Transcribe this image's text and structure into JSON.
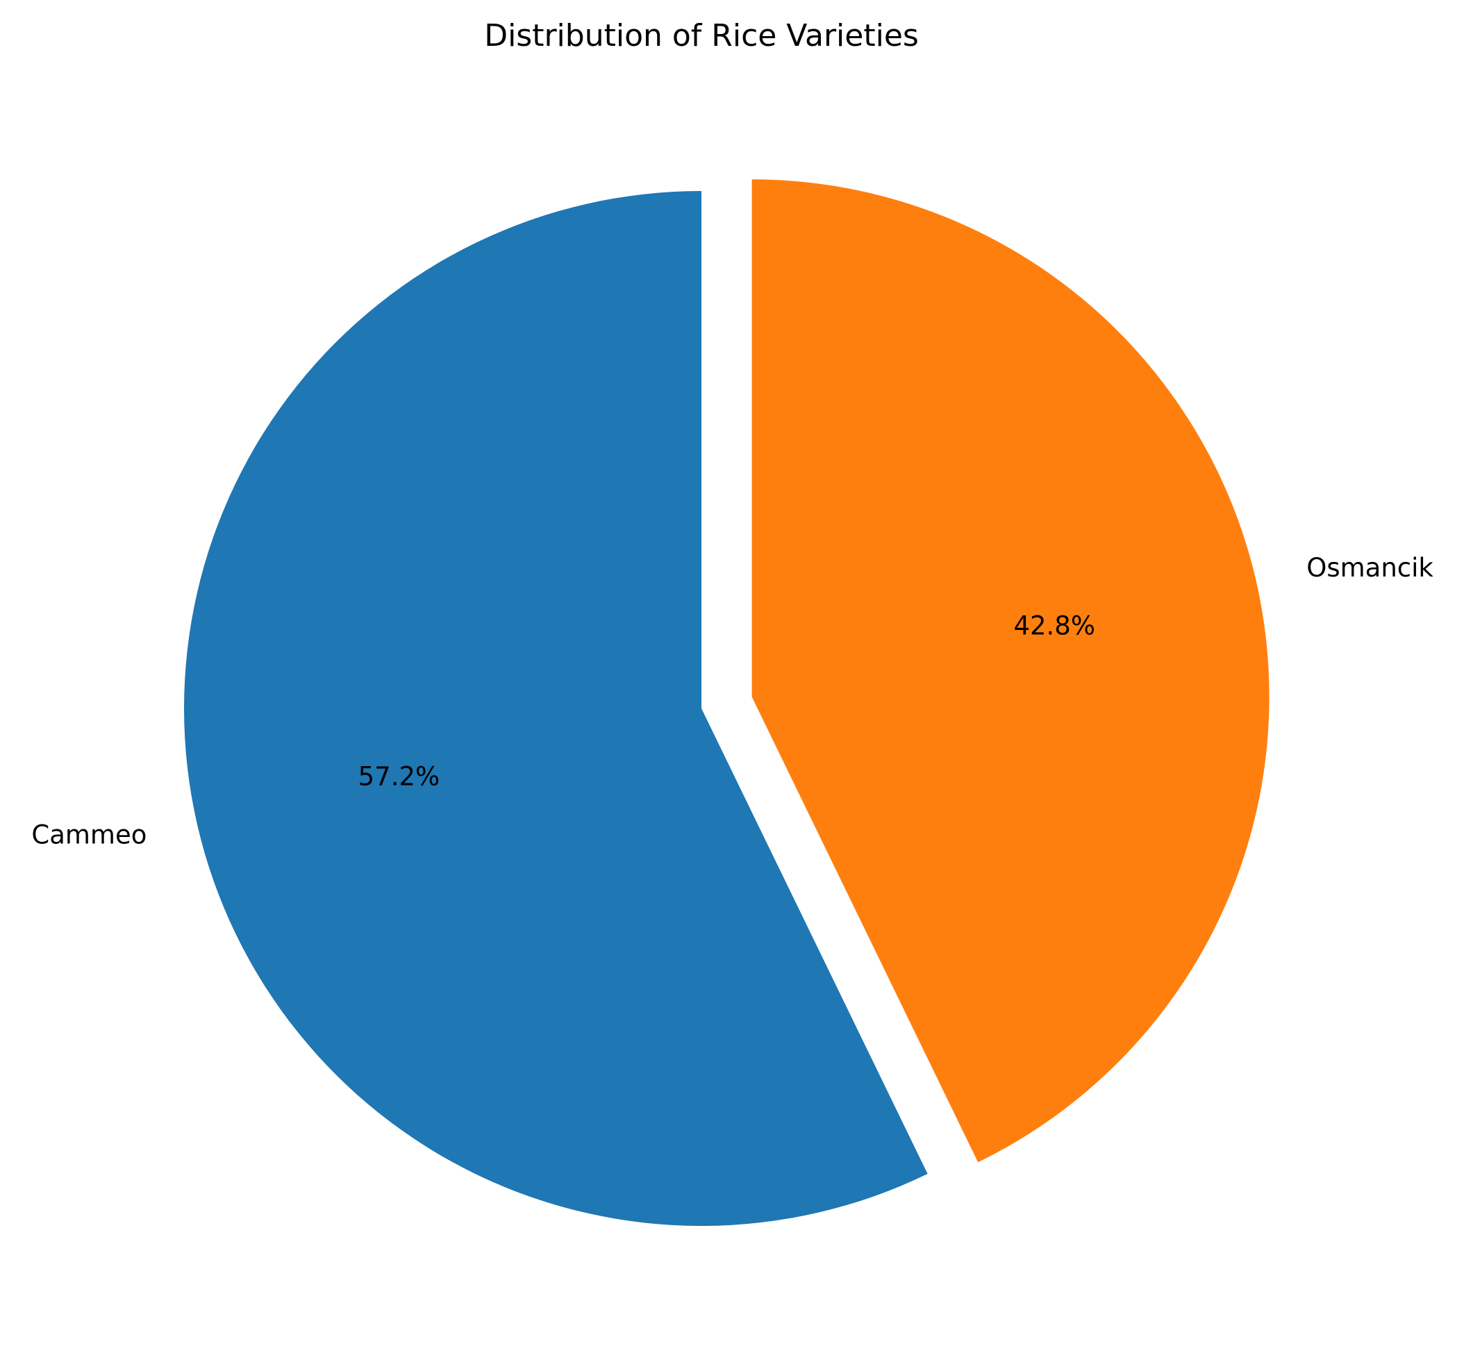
{
  "chart_data": {
    "type": "pie",
    "title": "Distribution of Rice Varieties",
    "start_angle_deg": 90,
    "direction": "counterclockwise",
    "slices": [
      {
        "label": "Cammeo",
        "value": 57.2,
        "pct_label": "57.2%",
        "color": "#1f77b4",
        "explode": 0.0
      },
      {
        "label": "Osmancik",
        "value": 42.8,
        "pct_label": "42.8%",
        "color": "#ff7f0e",
        "explode": 0.1
      }
    ]
  }
}
